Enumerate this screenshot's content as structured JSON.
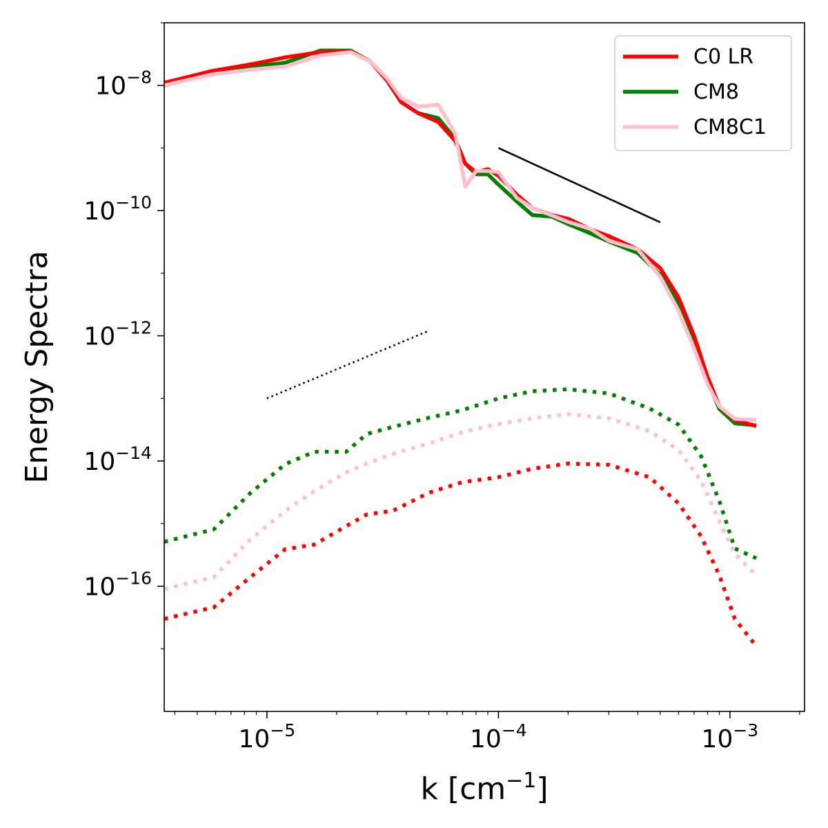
{
  "chart_data": {
    "type": "line",
    "title": "",
    "xscale": "log",
    "yscale": "log",
    "xlim": [
      3.6e-06,
      0.0021
    ],
    "ylim": [
      1e-18,
      1e-07
    ],
    "xlabel": {
      "base": "k [cm",
      "sup": "−1",
      "tail": "]"
    },
    "ylabel": "Energy Spectra",
    "x_ticks": [
      {
        "value": 1e-05,
        "base": "10",
        "exp": "−5"
      },
      {
        "value": 0.0001,
        "base": "10",
        "exp": "−4"
      },
      {
        "value": 0.001,
        "base": "10",
        "exp": "−3"
      }
    ],
    "y_ticks": [
      {
        "value": 1e-08,
        "base": "10",
        "exp": "−8"
      },
      {
        "value": 1e-10,
        "base": "10",
        "exp": "−10"
      },
      {
        "value": 1e-12,
        "base": "10",
        "exp": "−12"
      },
      {
        "value": 1e-14,
        "base": "10",
        "exp": "−14"
      },
      {
        "value": 1e-16,
        "base": "10",
        "exp": "−16"
      }
    ],
    "legend": {
      "position": "top-right",
      "entries": [
        {
          "label": "C0 LR",
          "color": "#ff0000"
        },
        {
          "label": "CM8",
          "color": "#008000"
        },
        {
          "label": "CM8C1",
          "color": "#ffc0cb"
        }
      ]
    },
    "series": [
      {
        "name": "CM8 dotted",
        "color": "#008000",
        "style": "dotted",
        "x": [
          3.6e-06,
          5.9e-06,
          8.5e-06,
          1.2e-05,
          1.6e-05,
          2.2e-05,
          2.7e-05,
          3.5e-05,
          5e-05,
          7e-05,
          0.0001,
          0.00014,
          0.0002,
          0.0003,
          0.00045,
          0.0006,
          0.00075,
          0.0009,
          0.00105,
          0.0013
        ],
        "y": [
          5.1e-16,
          8.1e-16,
          3.1e-15,
          8.9e-15,
          1.4e-14,
          1.4e-14,
          2.7e-14,
          3.5e-14,
          4.9e-14,
          6.5e-14,
          1e-13,
          1.3e-13,
          1.4e-13,
          1.2e-13,
          6.9e-14,
          3.8e-14,
          1.2e-14,
          2.3e-15,
          4e-16,
          2.8e-16
        ]
      },
      {
        "name": "CM8C1 dotted",
        "color": "#ffc0cb",
        "style": "dotted",
        "x": [
          3.6e-06,
          5.9e-06,
          8.5e-06,
          1.2e-05,
          1.6e-05,
          2.2e-05,
          2.7e-05,
          3.5e-05,
          5e-05,
          7e-05,
          0.0001,
          0.00014,
          0.0002,
          0.0003,
          0.00045,
          0.0006,
          0.00075,
          0.0009,
          0.00105,
          0.0013
        ],
        "y": [
          9e-17,
          1.4e-16,
          5.6e-16,
          1.6e-15,
          3.3e-15,
          6.6e-15,
          9.1e-15,
          1.3e-14,
          1.9e-14,
          2.9e-14,
          3.9e-14,
          4.8e-14,
          5.6e-14,
          4.8e-14,
          3e-14,
          1.5e-14,
          4.8e-15,
          1.1e-15,
          3.3e-16,
          1.5e-16
        ]
      },
      {
        "name": "C0 LR dotted",
        "color": "#ff0000",
        "style": "dotted",
        "x": [
          3.6e-06,
          5.9e-06,
          8.5e-06,
          1.2e-05,
          1.6e-05,
          2.2e-05,
          2.7e-05,
          3.5e-05,
          5e-05,
          7e-05,
          0.0001,
          0.00014,
          0.0002,
          0.0003,
          0.00045,
          0.0006,
          0.00075,
          0.0009,
          0.00105,
          0.0013
        ],
        "y": [
          3e-17,
          4.6e-17,
          1.4e-16,
          3.9e-16,
          4.6e-16,
          9.1e-16,
          1.4e-15,
          1.6e-15,
          3.1e-15,
          4.6e-15,
          5.5e-15,
          7.5e-15,
          9.1e-15,
          8.7e-15,
          5.5e-15,
          2.1e-15,
          6.3e-16,
          1.5e-16,
          3e-17,
          1.1e-17
        ]
      },
      {
        "name": "CM8",
        "color": "#008000",
        "style": "solid",
        "x": [
          3.6e-06,
          5.8e-06,
          8.7e-06,
          1.2e-05,
          1.7e-05,
          2.3e-05,
          2.8e-05,
          3.3e-05,
          3.8e-05,
          4.5e-05,
          5.5e-05,
          6.5e-05,
          7.2e-05,
          8e-05,
          9e-05,
          0.0001,
          0.00012,
          0.00014,
          0.00017,
          0.0002,
          0.00025,
          0.0003,
          0.0004,
          0.0005,
          0.0006,
          0.0007,
          0.0008,
          0.0009,
          0.00105,
          0.0013
        ],
        "y": [
          9.9e-09,
          1.6e-08,
          2e-08,
          2.3e-08,
          3.6e-08,
          3.6e-08,
          2.4e-08,
          1.2e-08,
          5.4e-09,
          3.6e-09,
          3e-09,
          1.4e-09,
          5.6e-10,
          3.8e-10,
          3.8e-10,
          2.6e-10,
          1.4e-10,
          8.5e-11,
          8e-11,
          6.1e-11,
          4.3e-11,
          3.2e-11,
          2.1e-11,
          9.4e-12,
          3.2e-12,
          8.1e-13,
          1.9e-13,
          6.8e-14,
          4e-14,
          3.7e-14
        ]
      },
      {
        "name": "C0 LR",
        "color": "#ff0000",
        "style": "solid",
        "x": [
          3.6e-06,
          5.8e-06,
          8.7e-06,
          1.2e-05,
          1.7e-05,
          2.3e-05,
          2.8e-05,
          3.3e-05,
          3.8e-05,
          4.5e-05,
          5.5e-05,
          6.5e-05,
          7.2e-05,
          8e-05,
          9e-05,
          0.0001,
          0.00012,
          0.00014,
          0.00017,
          0.0002,
          0.00025,
          0.0003,
          0.0004,
          0.0005,
          0.0006,
          0.0007,
          0.0008,
          0.0009,
          0.00105,
          0.0013
        ],
        "y": [
          1.1e-08,
          1.7e-08,
          2.2e-08,
          2.8e-08,
          3.4e-08,
          3.5e-08,
          2.4e-08,
          1.2e-08,
          5.4e-09,
          3.6e-09,
          2.6e-09,
          1.3e-09,
          5.6e-10,
          4.1e-10,
          4.6e-10,
          3.6e-10,
          1.8e-10,
          1.1e-10,
          8.5e-11,
          7.4e-11,
          5e-11,
          3.9e-11,
          2.4e-11,
          1.2e-11,
          4.1e-12,
          1e-12,
          2.2e-13,
          7.5e-14,
          4.5e-14,
          3.6e-14
        ]
      },
      {
        "name": "CM8C1",
        "color": "#ffc0cb",
        "style": "solid",
        "x": [
          3.6e-06,
          5.8e-06,
          8.7e-06,
          1.2e-05,
          1.7e-05,
          2.3e-05,
          2.8e-05,
          3.3e-05,
          3.8e-05,
          4.5e-05,
          5.5e-05,
          6.5e-05,
          7.2e-05,
          8e-05,
          9e-05,
          0.0001,
          0.00012,
          0.00014,
          0.00017,
          0.0002,
          0.00025,
          0.0003,
          0.0004,
          0.0005,
          0.0006,
          0.0007,
          0.0008,
          0.0009,
          0.00105,
          0.0013
        ],
        "y": [
          1e-08,
          1.5e-08,
          1.8e-08,
          2e-08,
          3e-08,
          3.4e-08,
          2.4e-08,
          1.3e-08,
          6.3e-09,
          4.6e-09,
          4.9e-09,
          1.7e-09,
          2.4e-10,
          4.3e-10,
          4.3e-10,
          4.1e-10,
          1.6e-10,
          1.1e-10,
          8.4e-11,
          6.6e-11,
          5.1e-11,
          3.3e-11,
          2.4e-11,
          8.7e-12,
          2.5e-12,
          6.3e-13,
          1.7e-13,
          7.5e-14,
          4.7e-14,
          4.5e-14
        ]
      }
    ],
    "reference_lines": [
      {
        "name": "solid slope",
        "style": "solid",
        "color": "#000000",
        "x": [
          0.0001,
          0.0005
        ],
        "y": [
          1e-09,
          6.5e-11
        ]
      },
      {
        "name": "dotted slope",
        "style": "dotted",
        "color": "#000000",
        "x": [
          1e-05,
          5e-05
        ],
        "y": [
          1e-13,
          1.2e-12
        ]
      }
    ]
  }
}
